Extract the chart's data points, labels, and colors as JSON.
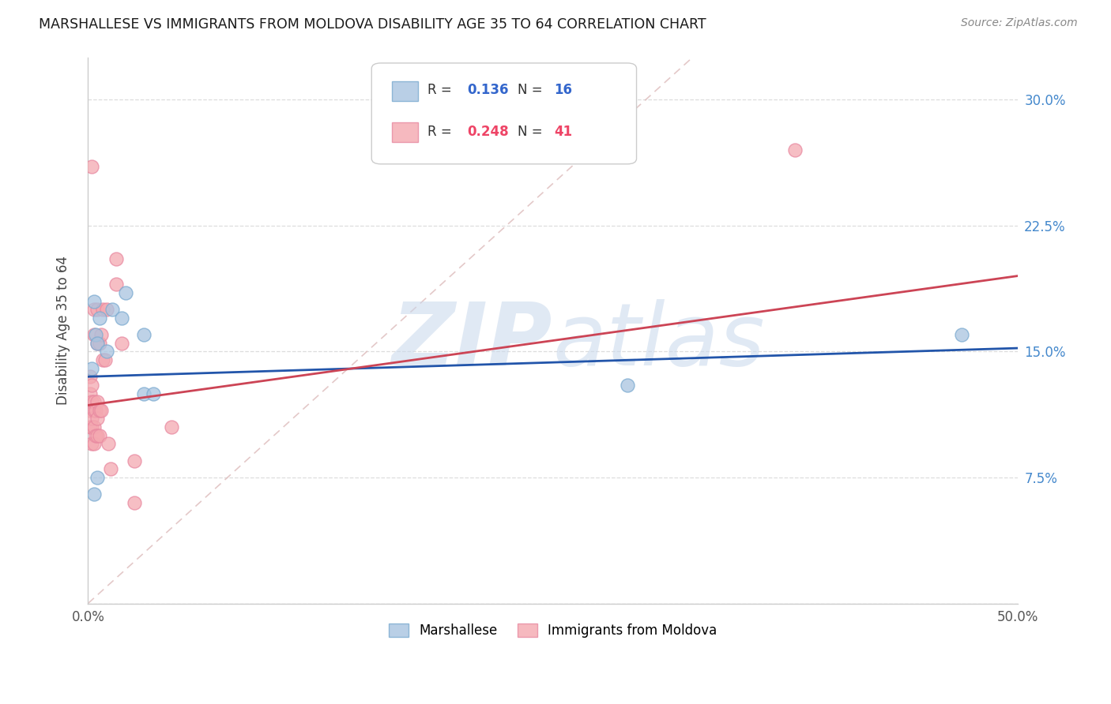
{
  "title": "MARSHALLESE VS IMMIGRANTS FROM MOLDOVA DISABILITY AGE 35 TO 64 CORRELATION CHART",
  "source": "Source: ZipAtlas.com",
  "ylabel": "Disability Age 35 to 64",
  "xlim": [
    0.0,
    0.5
  ],
  "ylim": [
    0.0,
    0.325
  ],
  "legend1_R": "0.136",
  "legend1_N": "16",
  "legend2_R": "0.248",
  "legend2_N": "41",
  "blue_color": "#A8C4E0",
  "pink_color": "#F4A8B0",
  "blue_line_color": "#2255AA",
  "pink_line_color": "#CC4455",
  "blue_scatter_edge": "#7AAAD0",
  "pink_scatter_edge": "#E888A0",
  "marshallese_x": [
    0.002,
    0.003,
    0.004,
    0.005,
    0.006,
    0.01,
    0.013,
    0.018,
    0.02,
    0.03,
    0.03,
    0.035,
    0.29,
    0.47,
    0.005,
    0.003
  ],
  "marshallese_y": [
    0.14,
    0.18,
    0.16,
    0.155,
    0.17,
    0.15,
    0.175,
    0.17,
    0.185,
    0.16,
    0.125,
    0.125,
    0.13,
    0.16,
    0.075,
    0.065
  ],
  "moldova_x": [
    0.001,
    0.001,
    0.001,
    0.001,
    0.002,
    0.002,
    0.002,
    0.002,
    0.002,
    0.003,
    0.003,
    0.003,
    0.003,
    0.003,
    0.003,
    0.004,
    0.004,
    0.005,
    0.005,
    0.005,
    0.005,
    0.005,
    0.006,
    0.006,
    0.006,
    0.007,
    0.007,
    0.008,
    0.008,
    0.009,
    0.01,
    0.011,
    0.012,
    0.015,
    0.015,
    0.018,
    0.025,
    0.025,
    0.045,
    0.38,
    0.002
  ],
  "moldova_y": [
    0.105,
    0.115,
    0.125,
    0.135,
    0.095,
    0.105,
    0.11,
    0.12,
    0.13,
    0.095,
    0.105,
    0.115,
    0.12,
    0.16,
    0.175,
    0.1,
    0.115,
    0.1,
    0.11,
    0.12,
    0.155,
    0.175,
    0.1,
    0.115,
    0.155,
    0.115,
    0.16,
    0.145,
    0.175,
    0.145,
    0.175,
    0.095,
    0.08,
    0.19,
    0.205,
    0.155,
    0.085,
    0.06,
    0.105,
    0.27,
    0.26
  ]
}
